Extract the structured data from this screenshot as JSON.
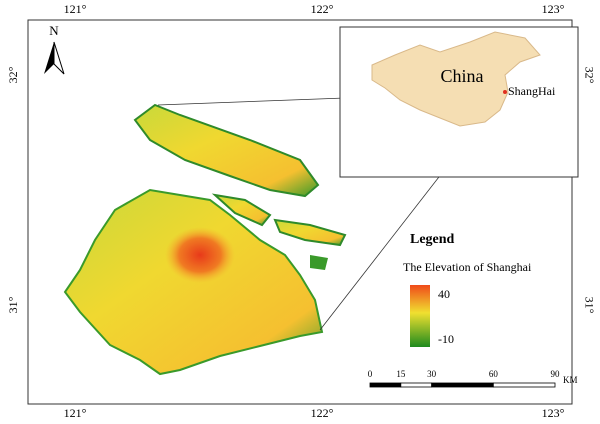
{
  "map": {
    "north": "N",
    "graticule": {
      "top": [
        "121°",
        "122°",
        "123°"
      ],
      "bottom": [
        "121°",
        "122°",
        "123°"
      ],
      "left": [
        "32°",
        "31°"
      ],
      "right": [
        "32°",
        "31°"
      ]
    },
    "inset": {
      "country": "China",
      "city": "ShangHai"
    },
    "legend": {
      "title": "Legend",
      "subtitle": "The Elevation of Shanghai",
      "high": "40",
      "low": "-10"
    },
    "scale": {
      "ticks": [
        0,
        15,
        30,
        60,
        90
      ],
      "unit": "KM"
    }
  }
}
